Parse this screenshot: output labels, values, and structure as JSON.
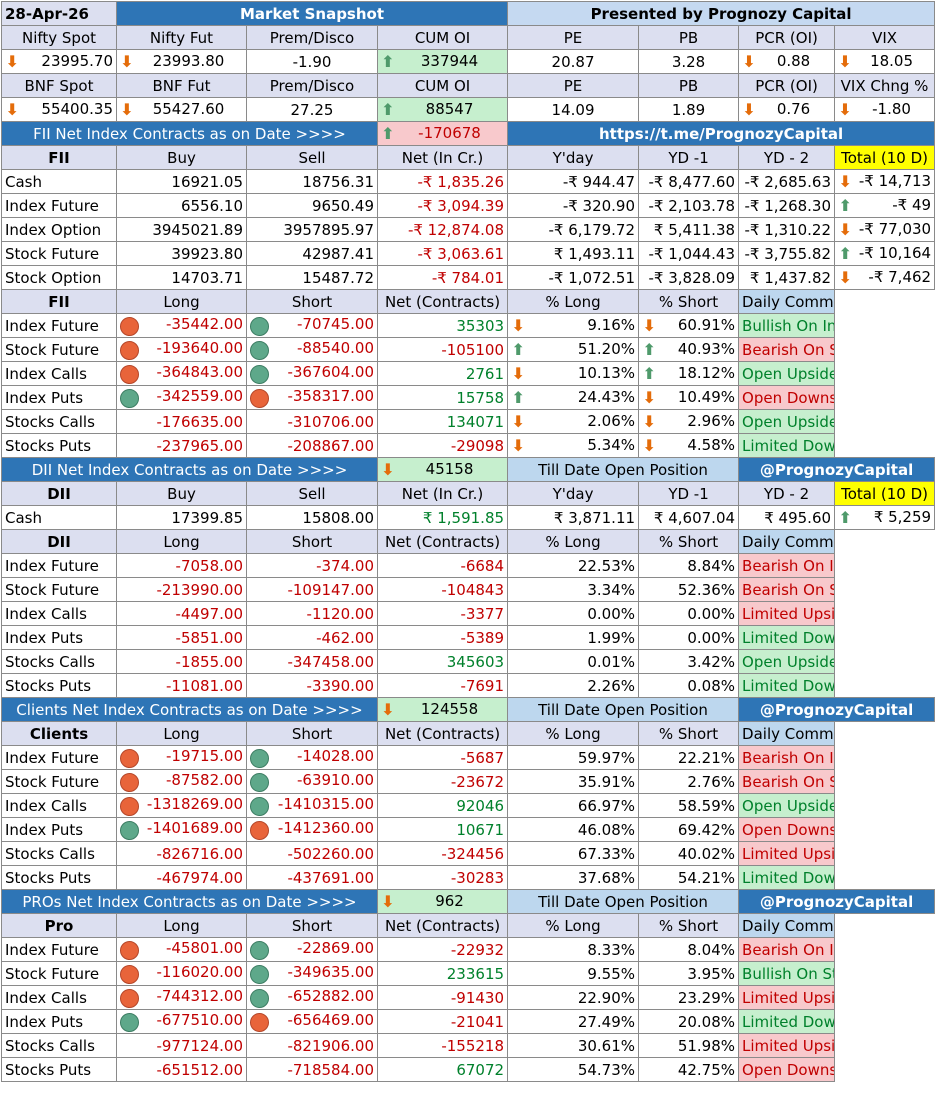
{
  "header": {
    "date": "28-Apr-26",
    "title": "Market Snapshot",
    "presenter": "Presented by Prognozy Capital"
  },
  "nifty": {
    "labels": [
      "Nifty Spot",
      "Nifty Fut",
      "Prem/Disco",
      "CUM OI",
      "PE",
      "PB",
      "PCR (OI)",
      "VIX"
    ],
    "values": [
      "23995.70",
      "23993.80",
      "-1.90",
      "337944",
      "20.87",
      "3.28",
      "0.88",
      "18.05"
    ]
  },
  "bnf": {
    "labels": [
      "BNF Spot",
      "BNF Fut",
      "Prem/Disco",
      "CUM OI",
      "PE",
      "PB",
      "PCR (OI)",
      "VIX Chng %"
    ],
    "values": [
      "55400.35",
      "55427.60",
      "27.25",
      "88547",
      "14.09",
      "1.89",
      "0.76",
      "-1.80"
    ]
  },
  "fii_banner": {
    "label": "FII  Net Index Contracts as on Date >>>>",
    "value": "-170678",
    "link": "https://t.me/PrognozyCapital"
  },
  "fii_cash": {
    "headers": [
      "FII",
      "Buy",
      "Sell",
      "Net (In Cr.)",
      "Y'day",
      "YD -1",
      "YD - 2",
      "Total (10 D)"
    ],
    "rows": [
      [
        "Cash",
        "16921.05",
        "18756.31",
        "-₹ 1,835.26",
        "-₹ 944.47",
        "-₹ 8,477.60",
        "-₹ 2,685.63",
        "-₹ 14,713"
      ],
      [
        "Index Future",
        "6556.10",
        "9650.49",
        "-₹ 3,094.39",
        "-₹ 320.90",
        "-₹ 2,103.78",
        "-₹ 1,268.30",
        "-₹ 49"
      ],
      [
        "Index Option",
        "3945021.89",
        "3957895.97",
        "-₹ 12,874.08",
        "-₹ 6,179.72",
        "₹ 5,411.38",
        "-₹ 1,310.22",
        "-₹ 77,030"
      ],
      [
        "Stock Future",
        "39923.80",
        "42987.41",
        "-₹ 3,063.61",
        "₹ 1,493.11",
        "-₹ 1,044.43",
        "-₹ 3,755.82",
        "-₹ 10,164"
      ],
      [
        "Stock Option",
        "14703.71",
        "15487.72",
        "-₹ 784.01",
        "-₹ 1,072.51",
        "-₹ 3,828.09",
        "₹ 1,437.82",
        "-₹ 7,462"
      ]
    ]
  },
  "oi_headers": [
    "Long",
    "Short",
    "Net (Contracts)",
    "% Long",
    "% Short",
    "Daily Commentary"
  ],
  "fii_oi": {
    "title": "FII",
    "rows": [
      [
        "Index Future",
        "-35442.00",
        "-70745.00",
        "35303",
        "9.16%",
        "60.91%",
        "Bullish On Index"
      ],
      [
        "Stock Future",
        "-193640.00",
        "-88540.00",
        "-105100",
        "51.20%",
        "40.93%",
        "Bearish On Stocks"
      ],
      [
        "Index Calls",
        "-364843.00",
        "-367604.00",
        "2761",
        "10.13%",
        "18.12%",
        "Open Upside"
      ],
      [
        "Index Puts",
        "-342559.00",
        "-358317.00",
        "15758",
        "24.43%",
        "10.49%",
        "Open Downside"
      ],
      [
        "Stocks Calls",
        "-176635.00",
        "-310706.00",
        "134071",
        "2.06%",
        "2.96%",
        "Open Upside"
      ],
      [
        "Stocks Puts",
        "-237965.00",
        "-208867.00",
        "-29098",
        "5.34%",
        "4.58%",
        "Limited Downside"
      ]
    ]
  },
  "dii_banner": {
    "label": "DII Net Index Contracts as on Date >>>>",
    "value": "45158",
    "note": "Till Date Open Position",
    "handle": "@PrognozyCapital"
  },
  "dii_cash": {
    "headers": [
      "DII",
      "Buy",
      "Sell",
      "Net (In Cr.)",
      "Y'day",
      "YD -1",
      "YD - 2",
      "Total (10 D)"
    ],
    "row": [
      "Cash",
      "17399.85",
      "15808.00",
      "₹ 1,591.85",
      "₹ 3,871.11",
      "₹ 4,607.04",
      "₹ 495.60",
      "₹ 5,259"
    ]
  },
  "dii_oi": {
    "title": "DII",
    "rows": [
      [
        "Index Future",
        "-7058.00",
        "-374.00",
        "-6684",
        "22.53%",
        "8.84%",
        "Bearish On Index"
      ],
      [
        "Stock Future",
        "-213990.00",
        "-109147.00",
        "-104843",
        "3.34%",
        "52.36%",
        "Bearish On Stocks"
      ],
      [
        "Index Calls",
        "-4497.00",
        "-1120.00",
        "-3377",
        "0.00%",
        "0.00%",
        "Limited Upside"
      ],
      [
        "Index Puts",
        "-5851.00",
        "-462.00",
        "-5389",
        "1.99%",
        "0.00%",
        "Limited Downside"
      ],
      [
        "Stocks Calls",
        "-1855.00",
        "-347458.00",
        "345603",
        "0.01%",
        "3.42%",
        "Open Upside"
      ],
      [
        "Stocks Puts",
        "-11081.00",
        "-3390.00",
        "-7691",
        "2.26%",
        "0.08%",
        "Limited Downside"
      ]
    ]
  },
  "clients_banner": {
    "label": "Clients  Net Index Contracts as on Date >>>>",
    "value": "124558",
    "note": "Till Date Open Position",
    "handle": "@PrognozyCapital"
  },
  "clients_oi": {
    "title": "Clients",
    "rows": [
      [
        "Index Future",
        "-19715.00",
        "-14028.00",
        "-5687",
        "59.97%",
        "22.21%",
        "Bearish On Index"
      ],
      [
        "Stock Future",
        "-87582.00",
        "-63910.00",
        "-23672",
        "35.91%",
        "2.76%",
        "Bearish On Stocks"
      ],
      [
        "Index Calls",
        "-1318269.00",
        "-1410315.00",
        "92046",
        "66.97%",
        "58.59%",
        "Open Upside"
      ],
      [
        "Index Puts",
        "-1401689.00",
        "-1412360.00",
        "10671",
        "46.08%",
        "69.42%",
        "Open Downside"
      ],
      [
        "Stocks Calls",
        "-826716.00",
        "-502260.00",
        "-324456",
        "67.33%",
        "40.02%",
        "Limited Upside"
      ],
      [
        "Stocks Puts",
        "-467974.00",
        "-437691.00",
        "-30283",
        "37.68%",
        "54.21%",
        "Limited Downside"
      ]
    ]
  },
  "pros_banner": {
    "label": "PROs Net Index Contracts as on Date >>>>",
    "value": "962",
    "note": "Till Date Open Position",
    "handle": "@PrognozyCapital"
  },
  "pro_oi": {
    "title": "Pro",
    "rows": [
      [
        "Index Future",
        "-45801.00",
        "-22869.00",
        "-22932",
        "8.33%",
        "8.04%",
        "Bearish On Index"
      ],
      [
        "Stock Future",
        "-116020.00",
        "-349635.00",
        "233615",
        "9.55%",
        "3.95%",
        "Bullish On Stocks"
      ],
      [
        "Index Calls",
        "-744312.00",
        "-652882.00",
        "-91430",
        "22.90%",
        "23.29%",
        "Limited Upside"
      ],
      [
        "Index Puts",
        "-677510.00",
        "-656469.00",
        "-21041",
        "27.49%",
        "20.08%",
        "Limited Downside"
      ],
      [
        "Stocks Calls",
        "-977124.00",
        "-821906.00",
        "-155218",
        "30.61%",
        "51.98%",
        "Limited Upside"
      ],
      [
        "Stocks Puts",
        "-651512.00",
        "-718584.00",
        "67072",
        "54.73%",
        "42.75%",
        "Open Downside"
      ]
    ]
  }
}
